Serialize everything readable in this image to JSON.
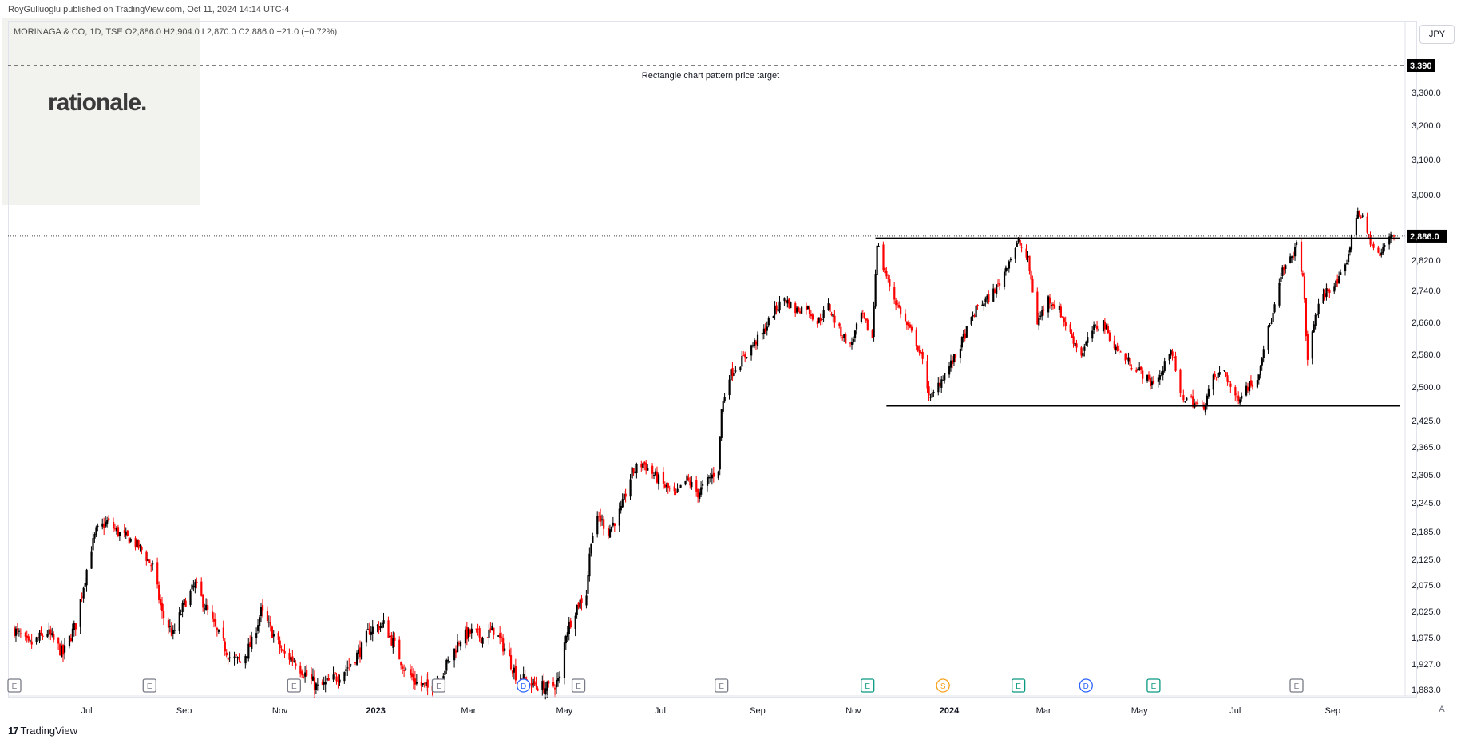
{
  "header": {
    "publisher_line": "RoyGulluoglu published on TradingView.com, Oct 11, 2024 14:14 UTC-4",
    "ohlc_line": "MORINAGA & CO, 1D, TSE  O2,886.0  H2,904.0  L2,870.0  C2,886.0  −21.0 (−0.72%)"
  },
  "logo_text": "rationale.",
  "currency_label": "JPY",
  "scale_mode_label": "A",
  "footer": {
    "brand_mark": "17",
    "brand_name": "TradingView"
  },
  "colors": {
    "up": "#000000",
    "down": "#ff0000",
    "line": "#000000",
    "earnings": "#089981",
    "dividend": "#2962ff",
    "split": "#f7a21b",
    "neutral_event": "#787b86"
  },
  "chart_data": {
    "type": "candlestick",
    "symbol": "MORINAGA & CO",
    "interval": "1D",
    "exchange": "TSE",
    "currency": "JPY",
    "last_price": 2886.0,
    "last_price_label": "2,886.0",
    "y_ticks": [
      1883,
      1927,
      1975,
      2025,
      2075,
      2125,
      2185,
      2245,
      2305,
      2365,
      2425,
      2500,
      2580,
      2660,
      2740,
      2820,
      3000,
      3100,
      3200,
      3300
    ],
    "y_tick_labels": [
      "1,883.0",
      "1,927.0",
      "1,975.0",
      "2,025.0",
      "2,075.0",
      "2,125.0",
      "2,185.0",
      "2,245.0",
      "2,305.0",
      "2,365.0",
      "2,425.0",
      "2,500.0",
      "2,580.0",
      "2,660.0",
      "2,740.0",
      "2,820.0",
      "3,000.0",
      "3,100.0",
      "3,200.0",
      "3,300.0"
    ],
    "x_ticks": [
      {
        "label": "Jul",
        "date": "2022-07-01",
        "bold": false
      },
      {
        "label": "Sep",
        "date": "2022-09-01",
        "bold": false
      },
      {
        "label": "Nov",
        "date": "2022-11-01",
        "bold": false
      },
      {
        "label": "2023",
        "date": "2023-01-01",
        "bold": true
      },
      {
        "label": "Mar",
        "date": "2023-03-01",
        "bold": false
      },
      {
        "label": "May",
        "date": "2023-05-01",
        "bold": false
      },
      {
        "label": "Jul",
        "date": "2023-07-01",
        "bold": false
      },
      {
        "label": "Sep",
        "date": "2023-09-01",
        "bold": false
      },
      {
        "label": "Nov",
        "date": "2023-11-01",
        "bold": false
      },
      {
        "label": "2024",
        "date": "2024-01-01",
        "bold": true
      },
      {
        "label": "Mar",
        "date": "2024-03-01",
        "bold": false
      },
      {
        "label": "May",
        "date": "2024-05-01",
        "bold": false
      },
      {
        "label": "Jul",
        "date": "2024-07-01",
        "bold": false
      },
      {
        "label": "Sep",
        "date": "2024-09-01",
        "bold": false
      }
    ],
    "x_range": [
      "2022-05-16",
      "2024-10-11"
    ],
    "series_anchors": [
      {
        "date": "2022-05-16",
        "price": 1990
      },
      {
        "date": "2022-05-25",
        "price": 1960
      },
      {
        "date": "2022-06-06",
        "price": 1985
      },
      {
        "date": "2022-06-16",
        "price": 1945
      },
      {
        "date": "2022-06-24",
        "price": 2000
      },
      {
        "date": "2022-06-30",
        "price": 2090
      },
      {
        "date": "2022-07-04",
        "price": 2150
      },
      {
        "date": "2022-07-07",
        "price": 2185
      },
      {
        "date": "2022-07-14",
        "price": 2205
      },
      {
        "date": "2022-07-22",
        "price": 2180
      },
      {
        "date": "2022-07-30",
        "price": 2165
      },
      {
        "date": "2022-08-05",
        "price": 2145
      },
      {
        "date": "2022-08-12",
        "price": 2110
      },
      {
        "date": "2022-08-18",
        "price": 2020
      },
      {
        "date": "2022-08-25",
        "price": 1980
      },
      {
        "date": "2022-09-01",
        "price": 2040
      },
      {
        "date": "2022-09-08",
        "price": 2075
      },
      {
        "date": "2022-09-15",
        "price": 2030
      },
      {
        "date": "2022-09-22",
        "price": 1985
      },
      {
        "date": "2022-09-30",
        "price": 1940
      },
      {
        "date": "2022-10-07",
        "price": 1930
      },
      {
        "date": "2022-10-14",
        "price": 1965
      },
      {
        "date": "2022-10-20",
        "price": 2025
      },
      {
        "date": "2022-10-27",
        "price": 1985
      },
      {
        "date": "2022-11-03",
        "price": 1945
      },
      {
        "date": "2022-11-10",
        "price": 1935
      },
      {
        "date": "2022-11-17",
        "price": 1910
      },
      {
        "date": "2022-11-25",
        "price": 1885
      },
      {
        "date": "2022-12-05",
        "price": 1900
      },
      {
        "date": "2022-12-15",
        "price": 1925
      },
      {
        "date": "2022-12-23",
        "price": 1955
      },
      {
        "date": "2022-12-28",
        "price": 1990
      },
      {
        "date": "2023-01-06",
        "price": 2000
      },
      {
        "date": "2023-01-13",
        "price": 1960
      },
      {
        "date": "2023-01-20",
        "price": 1915
      },
      {
        "date": "2023-01-27",
        "price": 1895
      },
      {
        "date": "2023-02-03",
        "price": 1885
      },
      {
        "date": "2023-02-10",
        "price": 1900
      },
      {
        "date": "2023-02-17",
        "price": 1935
      },
      {
        "date": "2023-02-24",
        "price": 1975
      },
      {
        "date": "2023-03-03",
        "price": 1985
      },
      {
        "date": "2023-03-10",
        "price": 1975
      },
      {
        "date": "2023-03-17",
        "price": 1990
      },
      {
        "date": "2023-03-24",
        "price": 1955
      },
      {
        "date": "2023-03-31",
        "price": 1910
      },
      {
        "date": "2023-04-07",
        "price": 1895
      },
      {
        "date": "2023-04-14",
        "price": 1890
      },
      {
        "date": "2023-04-21",
        "price": 1885
      },
      {
        "date": "2023-04-28",
        "price": 1900
      },
      {
        "date": "2023-05-02",
        "price": 1985
      },
      {
        "date": "2023-05-09",
        "price": 2035
      },
      {
        "date": "2023-05-15",
        "price": 2060
      },
      {
        "date": "2023-05-18",
        "price": 2170
      },
      {
        "date": "2023-05-23",
        "price": 2215
      },
      {
        "date": "2023-05-29",
        "price": 2185
      },
      {
        "date": "2023-06-06",
        "price": 2230
      },
      {
        "date": "2023-06-13",
        "price": 2310
      },
      {
        "date": "2023-06-20",
        "price": 2330
      },
      {
        "date": "2023-06-27",
        "price": 2305
      },
      {
        "date": "2023-07-04",
        "price": 2280
      },
      {
        "date": "2023-07-11",
        "price": 2260
      },
      {
        "date": "2023-07-18",
        "price": 2295
      },
      {
        "date": "2023-07-25",
        "price": 2265
      },
      {
        "date": "2023-08-01",
        "price": 2295
      },
      {
        "date": "2023-08-07",
        "price": 2320
      },
      {
        "date": "2023-08-09",
        "price": 2450
      },
      {
        "date": "2023-08-14",
        "price": 2530
      },
      {
        "date": "2023-08-21",
        "price": 2560
      },
      {
        "date": "2023-08-28",
        "price": 2600
      },
      {
        "date": "2023-09-04",
        "price": 2630
      },
      {
        "date": "2023-09-11",
        "price": 2685
      },
      {
        "date": "2023-09-18",
        "price": 2720
      },
      {
        "date": "2023-09-25",
        "price": 2690
      },
      {
        "date": "2023-10-02",
        "price": 2700
      },
      {
        "date": "2023-10-09",
        "price": 2660
      },
      {
        "date": "2023-10-16",
        "price": 2700
      },
      {
        "date": "2023-10-23",
        "price": 2640
      },
      {
        "date": "2023-10-30",
        "price": 2600
      },
      {
        "date": "2023-11-06",
        "price": 2680
      },
      {
        "date": "2023-11-13",
        "price": 2620
      },
      {
        "date": "2023-11-16",
        "price": 2870
      },
      {
        "date": "2023-11-20",
        "price": 2800
      },
      {
        "date": "2023-11-27",
        "price": 2720
      },
      {
        "date": "2023-12-04",
        "price": 2660
      },
      {
        "date": "2023-12-11",
        "price": 2610
      },
      {
        "date": "2023-12-15",
        "price": 2560
      },
      {
        "date": "2023-12-20",
        "price": 2470
      },
      {
        "date": "2023-12-27",
        "price": 2520
      },
      {
        "date": "2024-01-05",
        "price": 2575
      },
      {
        "date": "2024-01-12",
        "price": 2640
      },
      {
        "date": "2024-01-19",
        "price": 2700
      },
      {
        "date": "2024-01-26",
        "price": 2720
      },
      {
        "date": "2024-02-02",
        "price": 2760
      },
      {
        "date": "2024-02-09",
        "price": 2830
      },
      {
        "date": "2024-02-14",
        "price": 2870
      },
      {
        "date": "2024-02-20",
        "price": 2820
      },
      {
        "date": "2024-02-26",
        "price": 2660
      },
      {
        "date": "2024-03-04",
        "price": 2720
      },
      {
        "date": "2024-03-11",
        "price": 2690
      },
      {
        "date": "2024-03-18",
        "price": 2630
      },
      {
        "date": "2024-03-25",
        "price": 2580
      },
      {
        "date": "2024-04-01",
        "price": 2640
      },
      {
        "date": "2024-04-08",
        "price": 2660
      },
      {
        "date": "2024-04-15",
        "price": 2600
      },
      {
        "date": "2024-04-22",
        "price": 2570
      },
      {
        "date": "2024-05-01",
        "price": 2540
      },
      {
        "date": "2024-05-08",
        "price": 2510
      },
      {
        "date": "2024-05-15",
        "price": 2530
      },
      {
        "date": "2024-05-21",
        "price": 2600
      },
      {
        "date": "2024-05-27",
        "price": 2480
      },
      {
        "date": "2024-06-03",
        "price": 2470
      },
      {
        "date": "2024-06-10",
        "price": 2450
      },
      {
        "date": "2024-06-17",
        "price": 2520
      },
      {
        "date": "2024-06-24",
        "price": 2540
      },
      {
        "date": "2024-07-01",
        "price": 2470
      },
      {
        "date": "2024-07-08",
        "price": 2500
      },
      {
        "date": "2024-07-15",
        "price": 2520
      },
      {
        "date": "2024-07-19",
        "price": 2600
      },
      {
        "date": "2024-07-25",
        "price": 2680
      },
      {
        "date": "2024-07-31",
        "price": 2790
      },
      {
        "date": "2024-08-05",
        "price": 2820
      },
      {
        "date": "2024-08-09",
        "price": 2860
      },
      {
        "date": "2024-08-13",
        "price": 2780
      },
      {
        "date": "2024-08-16",
        "price": 2560
      },
      {
        "date": "2024-08-21",
        "price": 2680
      },
      {
        "date": "2024-08-28",
        "price": 2740
      },
      {
        "date": "2024-09-04",
        "price": 2760
      },
      {
        "date": "2024-09-09",
        "price": 2800
      },
      {
        "date": "2024-09-13",
        "price": 2880
      },
      {
        "date": "2024-09-17",
        "price": 2960
      },
      {
        "date": "2024-09-20",
        "price": 2930
      },
      {
        "date": "2024-09-26",
        "price": 2860
      },
      {
        "date": "2024-10-01",
        "price": 2830
      },
      {
        "date": "2024-10-04",
        "price": 2860
      },
      {
        "date": "2024-10-08",
        "price": 2895
      },
      {
        "date": "2024-10-11",
        "price": 2886
      }
    ],
    "annotations": {
      "resistance": {
        "price": 2880,
        "from": "2023-11-15",
        "to": "2024-10-14"
      },
      "support": {
        "price": 2458,
        "from": "2023-11-22",
        "to": "2024-10-14"
      },
      "price_target": {
        "price": 3390,
        "price_label": "3,390",
        "text": "Rectangle chart pattern price target"
      }
    },
    "events": [
      {
        "type": "E",
        "date": "2022-05-16"
      },
      {
        "type": "E",
        "date": "2022-08-10"
      },
      {
        "type": "E",
        "date": "2022-11-10"
      },
      {
        "type": "E",
        "date": "2023-02-10"
      },
      {
        "type": "D",
        "date": "2023-04-05"
      },
      {
        "type": "E",
        "date": "2023-05-10"
      },
      {
        "type": "E",
        "date": "2023-08-09"
      },
      {
        "type": "E",
        "date": "2023-11-10"
      },
      {
        "type": "S",
        "date": "2023-12-28"
      },
      {
        "type": "E",
        "date": "2024-02-14"
      },
      {
        "type": "D",
        "date": "2024-03-28"
      },
      {
        "type": "E",
        "date": "2024-05-10"
      },
      {
        "type": "E",
        "date": "2024-08-09"
      }
    ]
  }
}
